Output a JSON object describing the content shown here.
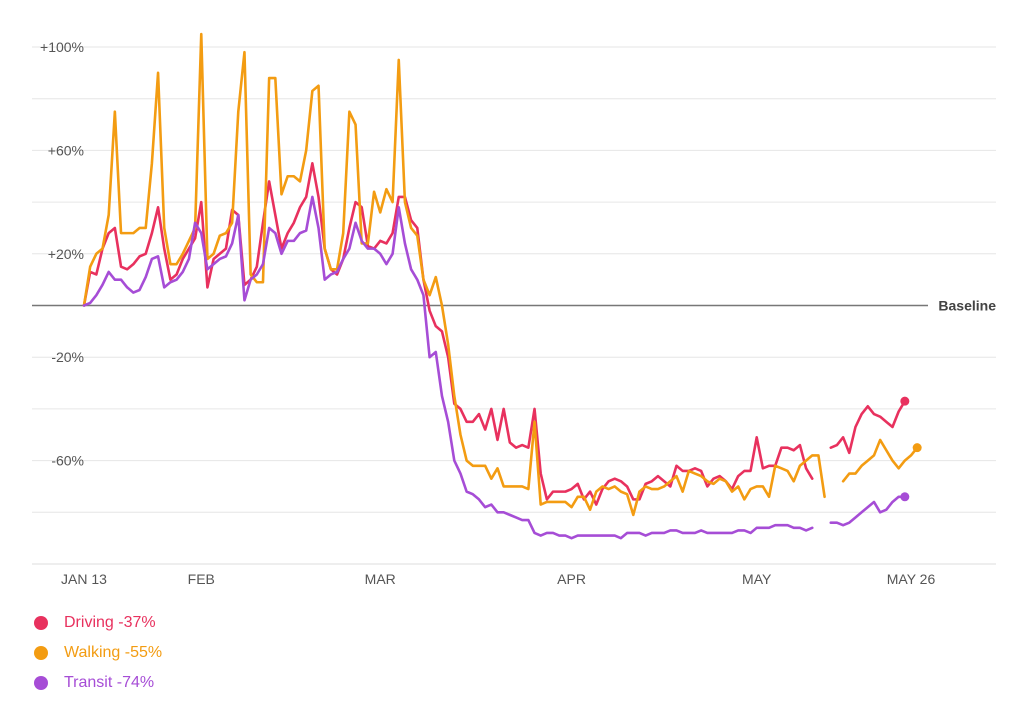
{
  "chart_data": {
    "type": "line",
    "y_unit": "% change vs baseline",
    "ylim": [
      -100,
      100
    ],
    "y_ticks": [
      {
        "value": 100,
        "label": "+100%"
      },
      {
        "value": 60,
        "label": "+60%"
      },
      {
        "value": 20,
        "label": "+20%"
      },
      {
        "value": -20,
        "label": "-20%"
      },
      {
        "value": -60,
        "label": "-60%"
      }
    ],
    "gridlines": [
      100,
      80,
      60,
      40,
      20,
      -20,
      -40,
      -60,
      -80
    ],
    "baseline": {
      "value": 0,
      "label": "Baseline"
    },
    "x_ticks": [
      {
        "date": "2020-01-13",
        "label": "JAN 13"
      },
      {
        "date": "2020-02-01",
        "label": "FEB"
      },
      {
        "date": "2020-03-01",
        "label": "MAR"
      },
      {
        "date": "2020-04-01",
        "label": "APR"
      },
      {
        "date": "2020-05-01",
        "label": "MAY"
      },
      {
        "date": "2020-05-26",
        "label": "MAY 26"
      }
    ],
    "x_start": "2020-01-13",
    "x_end": "2020-05-26",
    "missing_dates": [
      "2020-05-11",
      "2020-05-12"
    ],
    "series": [
      {
        "name": "Driving",
        "legend_label": "Driving -37%",
        "color": "#e8315e",
        "values": [
          0,
          13,
          12,
          22,
          28,
          30,
          15,
          14,
          16,
          19,
          20,
          28,
          38,
          22,
          10,
          12,
          18,
          22,
          26,
          40,
          7,
          18,
          20,
          22,
          37,
          35,
          8,
          10,
          15,
          32,
          48,
          35,
          22,
          28,
          32,
          38,
          42,
          55,
          42,
          22,
          14,
          12,
          18,
          30,
          40,
          38,
          23,
          22,
          25,
          24,
          28,
          42,
          42,
          33,
          30,
          10,
          -2,
          -8,
          -10,
          -20,
          -38,
          -40,
          -45,
          -45,
          -42,
          -48,
          -40,
          -52,
          -40,
          -53,
          -55,
          -54,
          -55,
          -40,
          -65,
          -75,
          -72,
          -72,
          -72,
          -71,
          -69,
          -75,
          -72,
          -77,
          -71,
          -68,
          -67,
          -68,
          -70,
          -75,
          -75,
          -69,
          -68,
          -66,
          -68,
          -70,
          -62,
          -64,
          -64,
          -63,
          -64,
          -70,
          -67,
          -66,
          -68,
          -71,
          -66,
          -64,
          -64,
          -51,
          -63,
          -62,
          -62,
          -55,
          -55,
          -56,
          -54,
          -63,
          -67,
          null,
          null,
          -55,
          -54,
          -51,
          -57,
          -47,
          -42,
          -39,
          -42,
          -43,
          -45,
          -47,
          -41,
          -37
        ],
        "final_marker": true
      },
      {
        "name": "Walking",
        "legend_label": "Walking -55%",
        "color": "#f39c12",
        "values": [
          0,
          15,
          20,
          22,
          35,
          75,
          28,
          28,
          28,
          30,
          30,
          55,
          90,
          30,
          16,
          16,
          20,
          25,
          30,
          105,
          18,
          20,
          27,
          28,
          32,
          75,
          98,
          12,
          9,
          9,
          88,
          88,
          43,
          50,
          50,
          48,
          60,
          83,
          85,
          22,
          14,
          14,
          28,
          75,
          70,
          24,
          24,
          44,
          36,
          45,
          40,
          95,
          40,
          30,
          27,
          10,
          4,
          11,
          0,
          -15,
          -35,
          -50,
          -60,
          -62,
          -62,
          -62,
          -67,
          -63,
          -70,
          -70,
          -70,
          -70,
          -71,
          -45,
          -77,
          -76,
          -76,
          -76,
          -76,
          -78,
          -74,
          -74,
          -79,
          -72,
          -70,
          -71,
          -70,
          -72,
          -73,
          -81,
          -72,
          -70,
          -71,
          -71,
          -70,
          -68,
          -66,
          -72,
          -64,
          -65,
          -66,
          -68,
          -69,
          -67,
          -68,
          -72,
          -70,
          -75,
          -71,
          -70,
          -70,
          -74,
          -62,
          -63,
          -64,
          -68,
          -62,
          -60,
          -58,
          -58,
          -74,
          null,
          null,
          -68,
          -65,
          -65,
          -62,
          -60,
          -58,
          -52,
          -56,
          -60,
          -63,
          -60,
          -58,
          -55
        ],
        "final_marker": true
      },
      {
        "name": "Transit",
        "legend_label": "Transit -74%",
        "color": "#a64dd6",
        "values": [
          0,
          1,
          4,
          8,
          13,
          10,
          10,
          7,
          5,
          6,
          11,
          18,
          19,
          7,
          9,
          10,
          13,
          18,
          32,
          28,
          14,
          16,
          18,
          19,
          24,
          35,
          2,
          10,
          12,
          16,
          30,
          28,
          20,
          25,
          25,
          28,
          29,
          42,
          30,
          10,
          12,
          13,
          18,
          22,
          32,
          25,
          22,
          22,
          20,
          16,
          20,
          38,
          24,
          14,
          10,
          4,
          -20,
          -18,
          -35,
          -45,
          -60,
          -65,
          -72,
          -73,
          -75,
          -78,
          -77,
          -80,
          -80,
          -81,
          -82,
          -83,
          -83,
          -88,
          -89,
          -88,
          -88,
          -89,
          -89,
          -90,
          -89,
          -89,
          -89,
          -89,
          -89,
          -89,
          -89,
          -90,
          -88,
          -88,
          -88,
          -89,
          -88,
          -88,
          -88,
          -87,
          -87,
          -88,
          -88,
          -88,
          -87,
          -88,
          -88,
          -88,
          -88,
          -88,
          -87,
          -87,
          -88,
          -86,
          -86,
          -86,
          -85,
          -85,
          -85,
          -86,
          -86,
          -87,
          -86,
          null,
          null,
          -84,
          -84,
          -85,
          -84,
          -82,
          -80,
          -78,
          -76,
          -80,
          -79,
          -76,
          -74,
          -74
        ],
        "final_marker": true
      }
    ]
  }
}
